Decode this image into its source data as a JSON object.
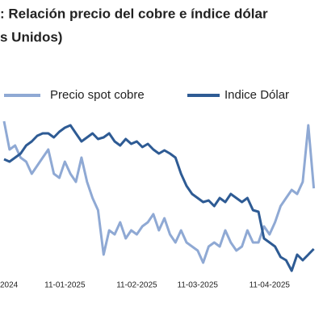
{
  "chart_data": {
    "type": "line",
    "title": [
      ": Relación precio del cobre e índice dólar",
      "s Unidos)"
    ],
    "categories": [
      null,
      "2024",
      null,
      null,
      null,
      null,
      null,
      null,
      null,
      null,
      null,
      "11-01-2025",
      null,
      null,
      null,
      null,
      null,
      null,
      null,
      null,
      null,
      null,
      null,
      null,
      "11-02-2025",
      null,
      null,
      null,
      null,
      null,
      null,
      null,
      null,
      null,
      null,
      "11-03-2025",
      null,
      null,
      null,
      null,
      null,
      null,
      null,
      null,
      null,
      null,
      null,
      null,
      "11-04-2025",
      null,
      null,
      null,
      null,
      null,
      null,
      null,
      null
    ],
    "series": [
      {
        "name": "Precio spot cobre",
        "color": "#8fa9d4",
        "values": [
          97.5,
          80,
          82.5,
          75,
          72.5,
          65,
          70,
          75,
          80,
          65,
          62.5,
          72.5,
          65,
          60,
          75,
          60,
          50,
          42.5,
          15,
          30,
          27.5,
          35,
          25,
          30,
          27.5,
          32.5,
          35,
          40,
          30,
          37.5,
          27.5,
          22.5,
          30,
          22.5,
          20,
          17.5,
          10,
          20,
          22.5,
          20,
          30,
          22.5,
          17.5,
          20,
          30,
          22.5,
          22.5,
          32.5,
          27.5,
          35,
          45,
          50,
          55,
          52.5,
          60,
          95,
          56
        ]
      },
      {
        "name": "Indice Dólar",
        "color": "#2e5b94",
        "values": [
          74,
          72.5,
          75,
          77.5,
          82.5,
          85,
          88.5,
          90,
          90,
          87.5,
          91,
          93.5,
          95,
          90,
          85,
          87.5,
          90,
          86.5,
          87.5,
          90,
          85,
          82.5,
          86.5,
          83.5,
          85,
          81.5,
          83.5,
          80,
          77.5,
          79.5,
          77.5,
          75,
          65,
          57.5,
          52.5,
          50,
          47.5,
          48.5,
          45,
          50,
          47.5,
          52.5,
          50,
          47.5,
          50,
          42.5,
          41.5,
          25,
          22.5,
          20,
          13.5,
          11.5,
          5,
          15,
          11.5,
          15,
          18.5
        ]
      }
    ],
    "ylim": [
      0,
      100
    ]
  }
}
